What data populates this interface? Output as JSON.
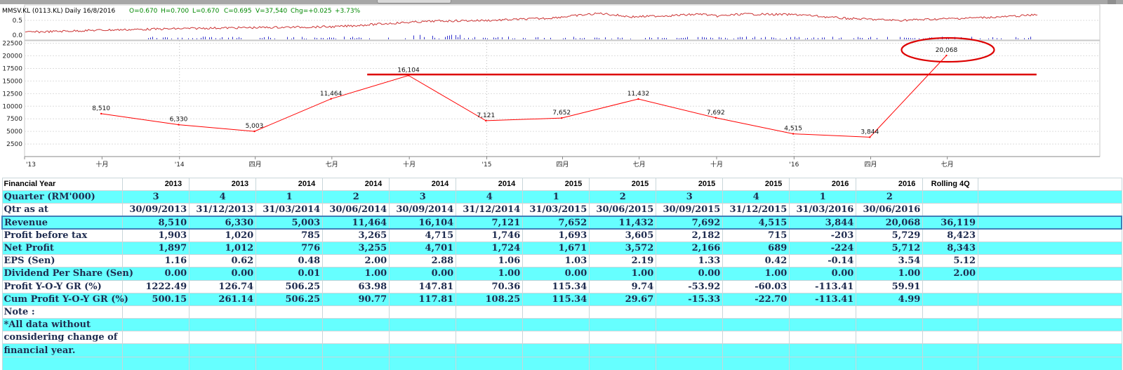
{
  "price_chart": {
    "ohlc": [
      {
        "text": "MMSV.KL (0113.KL) Daily  16/8/2016",
        "color": "#000000"
      },
      {
        "text": "O=0.670",
        "color": "#008800"
      },
      {
        "text": "H=0.700",
        "color": "#008800"
      },
      {
        "text": "L=0.670",
        "color": "#008800"
      },
      {
        "text": "C=0.695",
        "color": "#008800"
      },
      {
        "text": "V=37,540",
        "color": "#008800"
      },
      {
        "text": "Chg=+0.025",
        "color": "#008800"
      },
      {
        "text": "+3.73%",
        "color": "#008800"
      }
    ],
    "yticks": [
      "0.5",
      "0.0"
    ]
  },
  "chart_data": {
    "type": "line",
    "title": "",
    "series": [
      {
        "values": [
          8510,
          6330,
          5003,
          11464,
          16104,
          7121,
          7652,
          11432,
          7692,
          4515,
          3844,
          20068
        ],
        "color": "#ff0000"
      }
    ],
    "point_labels": [
      "8,510",
      "6,330",
      "5,003",
      "11,464",
      "16,104",
      "7,121",
      "7,652",
      "11,432",
      "7,692",
      "4,515",
      "3,844",
      "20,068"
    ],
    "x": [
      "30/09/2013",
      "31/12/2013",
      "31/03/2014",
      "30/06/2014",
      "30/09/2014",
      "31/12/2014",
      "31/03/2015",
      "30/06/2015",
      "30/09/2015",
      "31/12/2015",
      "31/03/2016",
      "30/06/2016"
    ],
    "x_tick_labels": [
      "'13",
      "十月",
      "'14",
      "四月",
      "七月",
      "十月",
      "'15",
      "四月",
      "七月",
      "十月",
      "'16",
      "四月",
      "七月"
    ],
    "x_tick_dates": [
      "2013-07-01",
      "2013-10-01",
      "2014-01-01",
      "2014-04-01",
      "2014-07-01",
      "2014-10-01",
      "2015-01-01",
      "2015-04-01",
      "2015-07-01",
      "2015-10-01",
      "2016-01-01",
      "2016-04-01",
      "2016-07-01"
    ],
    "x_range": [
      "2013-07-01",
      "2016-10-31"
    ],
    "yticks": [
      2500,
      5000,
      7500,
      10000,
      12500,
      15000,
      17500,
      20000,
      22500
    ],
    "ylim": [
      0,
      23000
    ],
    "grid": true,
    "annotations": [
      {
        "type": "hline",
        "y": 16300,
        "from": "2014-08-12",
        "to": "2016-10-15",
        "color": "#dd0000"
      },
      {
        "type": "ellipse",
        "around": "20,068",
        "color": "#dd0000"
      }
    ]
  },
  "table": {
    "columns": [
      "Financial Year",
      "2013",
      "2013",
      "2014",
      "2014",
      "2014",
      "2014",
      "2015",
      "2015",
      "2015",
      "2015",
      "2016",
      "2016",
      "Rolling 4Q",
      ""
    ],
    "rows": [
      {
        "label": "Quarter (RM'000)",
        "cells": [
          "3",
          "4",
          "1",
          "2",
          "3",
          "4",
          "1",
          "2",
          "3",
          "4",
          "1",
          "2",
          "",
          ""
        ]
      },
      {
        "label": "Qtr as at",
        "cells": [
          "30/09/2013",
          "31/12/2013",
          "31/03/2014",
          "30/06/2014",
          "30/09/2014",
          "31/12/2014",
          "31/03/2015",
          "30/06/2015",
          "30/09/2015",
          "31/12/2015",
          "31/03/2016",
          "30/06/2016",
          "",
          ""
        ]
      },
      {
        "label": "Revenue",
        "cells": [
          "8,510",
          "6,330",
          "5,003",
          "11,464",
          "16,104",
          "7,121",
          "7,652",
          "11,432",
          "7,692",
          "4,515",
          "3,844",
          "20,068",
          "36,119",
          ""
        ]
      },
      {
        "label": "Profit before tax",
        "cells": [
          "1,903",
          "1,020",
          "785",
          "3,265",
          "4,715",
          "1,746",
          "1,693",
          "3,605",
          "2,182",
          "715",
          "-203",
          "5,729",
          "8,423",
          ""
        ]
      },
      {
        "label": "Net Profit",
        "cells": [
          "1,897",
          "1,012",
          "776",
          "3,255",
          "4,701",
          "1,724",
          "1,671",
          "3,572",
          "2,166",
          "689",
          "-224",
          "5,712",
          "8,343",
          ""
        ]
      },
      {
        "label": "EPS (Sen)",
        "cells": [
          "1.16",
          "0.62",
          "0.48",
          "2.00",
          "2.88",
          "1.06",
          "1.03",
          "2.19",
          "1.33",
          "0.42",
          "-0.14",
          "3.54",
          "5.12",
          ""
        ]
      },
      {
        "label": "Dividend Per Share (Sen)",
        "cells": [
          "0.00",
          "0.00",
          "0.01",
          "1.00",
          "0.00",
          "1.00",
          "0.00",
          "1.00",
          "0.00",
          "1.00",
          "0.00",
          "1.00",
          "2.00",
          ""
        ]
      },
      {
        "label": "Profit Y-O-Y GR (%)",
        "cells": [
          "1222.49",
          "126.74",
          "506.25",
          "63.98",
          "147.81",
          "70.36",
          "115.34",
          "9.74",
          "-53.92",
          "-60.03",
          "-113.41",
          "59.91",
          "",
          ""
        ]
      },
      {
        "label": "Cum Profit Y-O-Y GR (%)",
        "cells": [
          "500.15",
          "261.14",
          "506.25",
          "90.77",
          "117.81",
          "108.25",
          "115.34",
          "29.67",
          "-15.33",
          "-22.70",
          "-113.41",
          "4.99",
          "",
          ""
        ]
      },
      {
        "label": "Note :",
        "cells": [
          "",
          "",
          "",
          "",
          "",
          "",
          "",
          "",
          "",
          "",
          "",
          "",
          "",
          ""
        ]
      },
      {
        "label": "*All data without",
        "cells": [
          "",
          "",
          "",
          "",
          "",
          "",
          "",
          "",
          "",
          "",
          "",
          "",
          "",
          ""
        ]
      },
      {
        "label": "considering change of",
        "cells": [
          "",
          "",
          "",
          "",
          "",
          "",
          "",
          "",
          "",
          "",
          "",
          "",
          "",
          ""
        ]
      },
      {
        "label": "financial year.",
        "cells": [
          "",
          "",
          "",
          "",
          "",
          "",
          "",
          "",
          "",
          "",
          "",
          "",
          "",
          ""
        ]
      },
      {
        "label": "",
        "cells": [
          "",
          "",
          "",
          "",
          "",
          "",
          "",
          "",
          "",
          "",
          "",
          "",
          "",
          ""
        ]
      }
    ],
    "row_styles": [
      "cyan",
      "white",
      "cyan",
      "white",
      "cyan",
      "white",
      "cyan",
      "white",
      "cyan",
      "white",
      "cyan",
      "white",
      "cyan",
      "cyan"
    ],
    "selected_row": "Revenue",
    "colors": {
      "cyan": "#66ffff",
      "text": "#1e2b4f",
      "selection": "#3f7fb8"
    }
  }
}
